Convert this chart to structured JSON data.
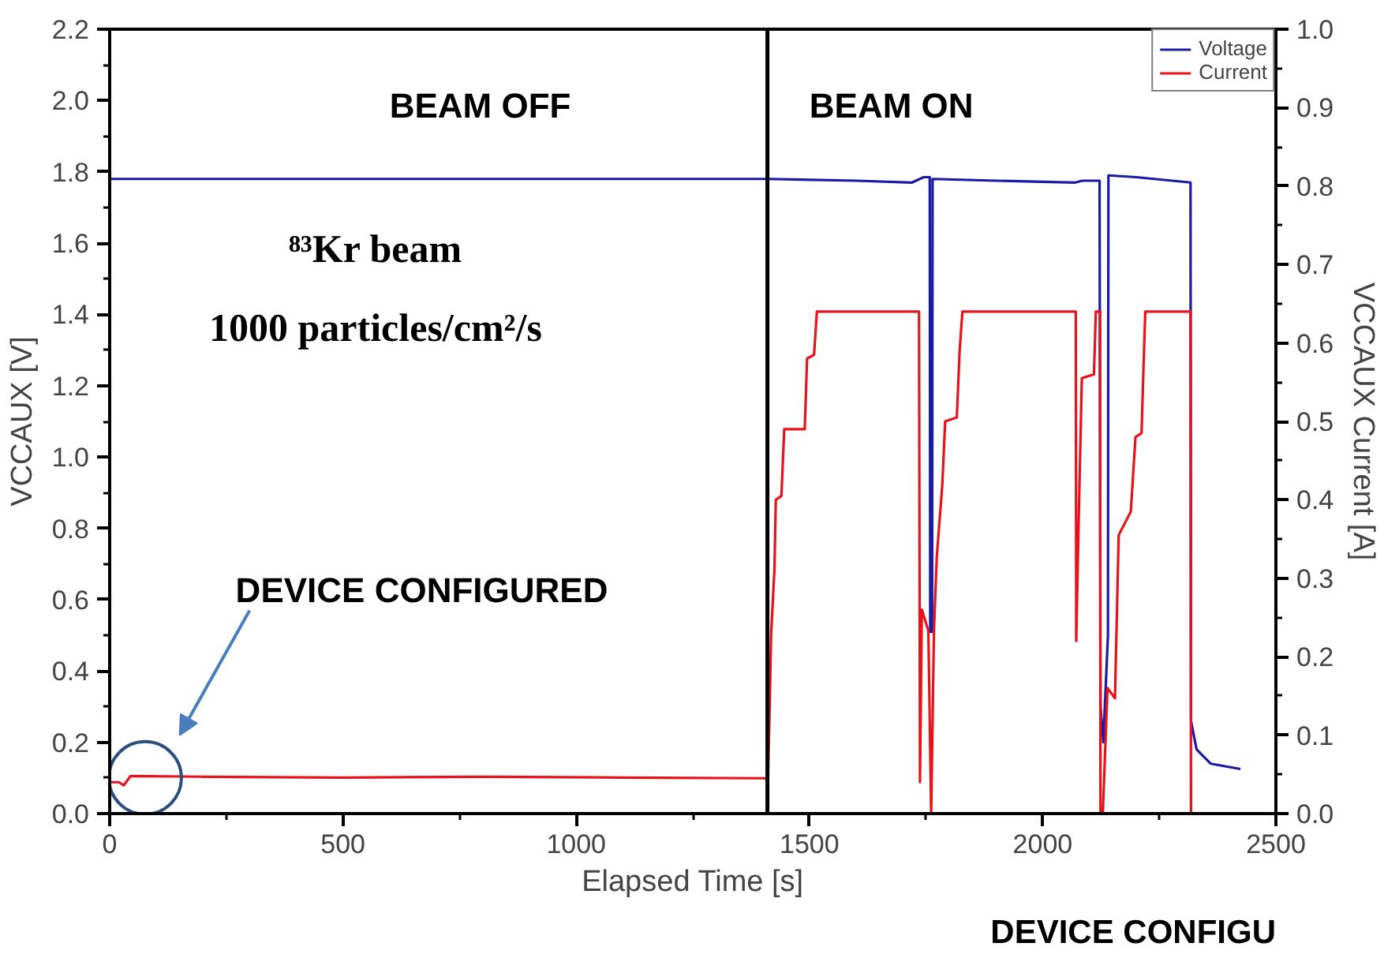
{
  "chart_data": {
    "type": "line",
    "xlabel": "Elapsed Time [s]",
    "ylabel": "VCCAUX [V]",
    "y2label": "VCCAUX Current [A]",
    "xlim": [
      0,
      2500
    ],
    "xticks": [
      0,
      500,
      1000,
      1500,
      2000,
      2500
    ],
    "ylim": [
      0,
      2.2
    ],
    "yticks": [
      {
        "value": 0,
        "label": "0.0"
      },
      0.2,
      0.4,
      0.6,
      0.8,
      {
        "value": 1,
        "label": "1.0"
      },
      1.2,
      1.4,
      1.6,
      1.8,
      {
        "value": 2,
        "label": "2.0"
      },
      2.2
    ],
    "y2lim": [
      0,
      1
    ],
    "y2ticks": [
      {
        "value": 0,
        "label": "0.0"
      },
      0.1,
      0.2,
      0.3,
      0.4,
      0.5,
      0.6,
      0.7,
      0.8,
      0.9,
      {
        "value": 1,
        "label": "1.0"
      }
    ],
    "series": [
      {
        "name": "Voltage",
        "color": "#1a1aa6",
        "x": [
          0,
          500,
          1000,
          1410,
          1600,
          1720,
          1745,
          1758,
          1759,
          1763,
          1764,
          1900,
          2070,
          2085,
          2122,
          2124,
          2130,
          2140,
          2141,
          2200,
          2317,
          2318,
          2330,
          2360,
          2424
        ],
        "values": [
          1.78,
          1.78,
          1.78,
          1.78,
          1.775,
          1.77,
          1.785,
          1.785,
          0.51,
          0.51,
          1.78,
          1.775,
          1.77,
          1.775,
          1.775,
          0.3,
          0.2,
          0.5,
          1.79,
          1.785,
          1.77,
          0.26,
          0.18,
          0.14,
          0.125
        ]
      },
      {
        "name": "Current",
        "color": "#e8121a",
        "axis": "y2",
        "x": [
          0,
          20,
          30,
          45,
          200,
          500,
          800,
          1100,
          1405,
          1411,
          1415,
          1418,
          1425,
          1428,
          1440,
          1446,
          1490,
          1495,
          1510,
          1516,
          1735,
          1737,
          1741,
          1755,
          1761,
          1767,
          1773,
          1785,
          1791,
          1816,
          1822,
          1828,
          2071,
          2072,
          2076,
          2084,
          2110,
          2114,
          2123,
          2124,
          2129,
          2139,
          2155,
          2163,
          2189,
          2199,
          2212,
          2216,
          2220,
          2317,
          2318
        ],
        "values": [
          0.04,
          0.04,
          0.036,
          0.048,
          0.047,
          0.046,
          0.047,
          0.046,
          0.045,
          0.043,
          0.14,
          0.23,
          0.31,
          0.4,
          0.405,
          0.49,
          0.49,
          0.58,
          0.585,
          0.64,
          0.64,
          0.04,
          0.26,
          0.233,
          0,
          0.233,
          0.327,
          0.42,
          0.5,
          0.505,
          0.59,
          0.64,
          0.64,
          0.22,
          0.34,
          0.555,
          0.56,
          0.64,
          0.64,
          0,
          0,
          0.16,
          0.147,
          0.355,
          0.385,
          0.48,
          0.485,
          0.565,
          0.64,
          0.64,
          0
        ]
      }
    ],
    "ref_lines": [
      {
        "axis": "x",
        "value": 1410,
        "color": "#000000"
      }
    ],
    "annotations": [
      "BEAM OFF",
      "BEAM ON",
      "⁸³Kr beam",
      "1000 particles/cm²/s",
      "DEVICE CONFIGURED",
      "DEVICE CONFIGU"
    ],
    "legend": "top right",
    "grid": false,
    "marker": "none",
    "line_style": "solid"
  }
}
